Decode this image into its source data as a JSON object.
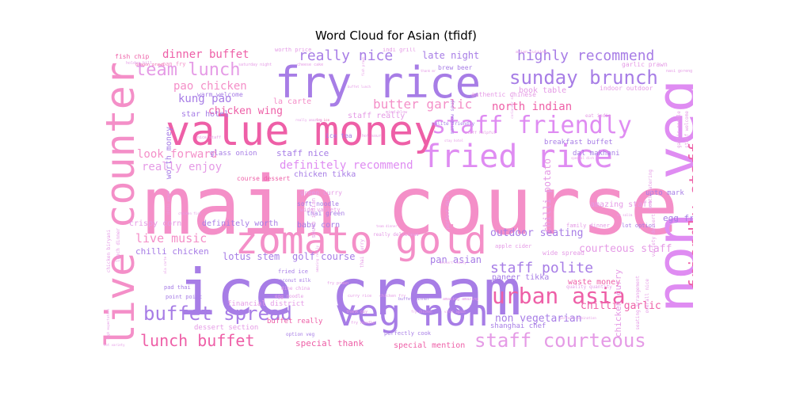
{
  "chart_data": {
    "type": "wordcloud",
    "title": "Word Cloud for Asian (tfidf)",
    "palette": [
      "#f48fc8",
      "#ee5fa7",
      "#a77de6",
      "#df8cf2",
      "#e59be6"
    ],
    "words": [
      {
        "text": "main course",
        "weight": 100,
        "color": "#f48fc8"
      },
      {
        "text": "ice cream",
        "weight": 78,
        "color": "#a77de6"
      },
      {
        "text": "non veg",
        "weight": 74,
        "color": "#df8cf2"
      },
      {
        "text": "value money",
        "weight": 58,
        "color": "#ee5fa7"
      },
      {
        "text": "fry rice",
        "weight": 58,
        "color": "#a77de6"
      },
      {
        "text": "live counter",
        "weight": 55,
        "color": "#f48fc8"
      },
      {
        "text": "zomato gold",
        "weight": 52,
        "color": "#f48fc8"
      },
      {
        "text": "veg non",
        "weight": 50,
        "color": "#a77de6"
      },
      {
        "text": "fried rice",
        "weight": 42,
        "color": "#df8cf2"
      },
      {
        "text": "staff friendly",
        "weight": 36,
        "color": "#df8cf2"
      },
      {
        "text": "urban asia",
        "weight": 30,
        "color": "#ee5fa7"
      },
      {
        "text": "sunday brunch",
        "weight": 28,
        "color": "#a77de6"
      },
      {
        "text": "buffet spread",
        "weight": 28,
        "color": "#a77de6"
      },
      {
        "text": "staff courteous",
        "weight": 28,
        "color": "#e59be6"
      },
      {
        "text": "friendly staff",
        "weight": 26,
        "color": "#ee5fa7"
      },
      {
        "text": "team lunch",
        "weight": 25,
        "color": "#e59be6"
      },
      {
        "text": "lunch buffet",
        "weight": 24,
        "color": "#ee5fa7"
      },
      {
        "text": "highly recommend",
        "weight": 22,
        "color": "#a77de6"
      },
      {
        "text": "really nice",
        "weight": 20,
        "color": "#a77de6"
      },
      {
        "text": "staff polite",
        "weight": 20,
        "color": "#a77de6"
      },
      {
        "text": "butter garlic",
        "weight": 18,
        "color": "#f48fc8"
      },
      {
        "text": "live music",
        "weight": 17,
        "color": "#f48fc8"
      },
      {
        "text": "dinner buffet",
        "weight": 16,
        "color": "#ee5fa7"
      },
      {
        "text": "pao chicken",
        "weight": 15,
        "color": "#f48fc8"
      },
      {
        "text": "kung pao",
        "weight": 15,
        "color": "#a77de6"
      },
      {
        "text": "chicken wing",
        "weight": 15,
        "color": "#ee5fa7"
      },
      {
        "text": "north indian",
        "weight": 15,
        "color": "#ee5fa7"
      },
      {
        "text": "definitely recommend",
        "weight": 15,
        "color": "#df8cf2"
      },
      {
        "text": "look forward",
        "weight": 15,
        "color": "#f48fc8"
      },
      {
        "text": "really enjoy",
        "weight": 15,
        "color": "#e59be6"
      },
      {
        "text": "outdoor seating",
        "weight": 15,
        "color": "#a77de6"
      },
      {
        "text": "courteous staff",
        "weight": 14,
        "color": "#e59be6"
      },
      {
        "text": "chilli garlic",
        "weight": 14,
        "color": "#ee5fa7"
      },
      {
        "text": "non vegetarian",
        "weight": 14,
        "color": "#a77de6"
      },
      {
        "text": "lotus stem",
        "weight": 13,
        "color": "#a77de6"
      },
      {
        "text": "golf course",
        "weight": 13,
        "color": "#a77de6"
      },
      {
        "text": "pan asian",
        "weight": 12,
        "color": "#a77de6"
      },
      {
        "text": "special thank",
        "weight": 11,
        "color": "#ee5fa7"
      },
      {
        "text": "special mention",
        "weight": 10,
        "color": "#ee5fa7"
      },
      {
        "text": "waste money",
        "weight": 10,
        "color": "#ee5fa7"
      },
      {
        "text": "paneer tikka",
        "weight": 10,
        "color": "#a77de6"
      },
      {
        "text": "chilli chicken",
        "weight": 10,
        "color": "#a77de6"
      },
      {
        "text": "late night",
        "weight": 10,
        "color": "#a77de6"
      },
      {
        "text": "staff nice",
        "weight": 10,
        "color": "#a77de6"
      },
      {
        "text": "la carte",
        "weight": 10,
        "color": "#f48fc8"
      },
      {
        "text": "book table",
        "weight": 9,
        "color": "#e59be6"
      },
      {
        "text": "star hotel",
        "weight": 9,
        "color": "#a77de6"
      },
      {
        "text": "chilli potato",
        "weight": 9,
        "color": "#e59be6"
      },
      {
        "text": "amazing staff",
        "weight": 9,
        "color": "#e59be6"
      },
      {
        "text": "egg fry",
        "weight": 9,
        "color": "#a77de6"
      },
      {
        "text": "chicken curry",
        "weight": 9,
        "color": "#e59be6"
      },
      {
        "text": "crispy corn",
        "weight": 9,
        "color": "#e59be6"
      },
      {
        "text": "baby corn",
        "weight": 9,
        "color": "#a77de6"
      },
      {
        "text": "definitely worth",
        "weight": 9,
        "color": "#a77de6"
      },
      {
        "text": "chicken tikka",
        "weight": 9,
        "color": "#a77de6"
      },
      {
        "text": "worth money",
        "weight": 9,
        "color": "#a77de6"
      },
      {
        "text": "staff really",
        "weight": 9,
        "color": "#e59be6"
      },
      {
        "text": "glass onion",
        "weight": 8,
        "color": "#a77de6"
      },
      {
        "text": "buffet really",
        "weight": 8,
        "color": "#ee5fa7"
      },
      {
        "text": "dessert section",
        "weight": 8,
        "color": "#e59be6"
      },
      {
        "text": "shanghai chef",
        "weight": 8,
        "color": "#a77de6"
      },
      {
        "text": "financial district",
        "weight": 8,
        "color": "#e59be6"
      },
      {
        "text": "upto mark",
        "weight": 8,
        "color": "#a77de6"
      },
      {
        "text": "breakfast buffet",
        "weight": 8,
        "color": "#a77de6"
      },
      {
        "text": "dal makhani",
        "weight": 8,
        "color": "#a77de6"
      },
      {
        "text": "indoor outdoor",
        "weight": 8,
        "color": "#e59be6"
      },
      {
        "text": "garlic prawn",
        "weight": 8,
        "color": "#e59be6"
      },
      {
        "text": "authentic chinese",
        "weight": 8,
        "color": "#e59be6"
      },
      {
        "text": "green curry",
        "weight": 8,
        "color": "#e59be6"
      },
      {
        "text": "soft noodle",
        "weight": 8,
        "color": "#a77de6"
      },
      {
        "text": "thai green",
        "weight": 8,
        "color": "#a77de6"
      },
      {
        "text": "south indian",
        "weight": 7,
        "color": "#e59be6"
      },
      {
        "text": "wide variety",
        "weight": 7,
        "color": "#e59be6"
      },
      {
        "text": "course dessert",
        "weight": 7,
        "color": "#ee5fa7"
      },
      {
        "text": "ice tea",
        "weight": 7,
        "color": "#a77de6"
      },
      {
        "text": "worth price",
        "weight": 7,
        "color": "#e59be6"
      },
      {
        "text": "fish chip",
        "weight": 7,
        "color": "#ee5fa7"
      },
      {
        "text": "pan fry",
        "weight": 7,
        "color": "#f48fc8"
      },
      {
        "text": "warm welcome",
        "weight": 7,
        "color": "#a77de6"
      },
      {
        "text": "brew beer",
        "weight": 7,
        "color": "#a77de6"
      },
      {
        "text": "indi grill",
        "weight": 7,
        "color": "#e59be6"
      },
      {
        "text": "wide spread",
        "weight": 7,
        "color": "#e59be6"
      },
      {
        "text": "apple cider",
        "weight": 7,
        "color": "#e59be6"
      },
      {
        "text": "family dinner",
        "weight": 7,
        "color": "#e59be6"
      },
      {
        "text": "lot option",
        "weight": 7,
        "color": "#a77de6"
      },
      {
        "text": "fried ice",
        "weight": 7,
        "color": "#a77de6"
      },
      {
        "text": "pad thai",
        "weight": 7,
        "color": "#a77de6"
      },
      {
        "text": "point point",
        "weight": 7,
        "color": "#a77de6"
      },
      {
        "text": "coconut milk",
        "weight": 6,
        "color": "#a77de6"
      },
      {
        "text": "dine china",
        "weight": 6,
        "color": "#e59be6"
      },
      {
        "text": "egg noodle",
        "weight": 6,
        "color": "#e59be6"
      },
      {
        "text": "option veg",
        "weight": 6,
        "color": "#a77de6"
      },
      {
        "text": "perfectly cook",
        "weight": 6,
        "color": "#a77de6"
      },
      {
        "text": "really delicious",
        "weight": 6,
        "color": "#e59be6"
      },
      {
        "text": "thai curry",
        "weight": 6,
        "color": "#e59be6"
      },
      {
        "text": "perfect date",
        "weight": 6,
        "color": "#e59be6"
      },
      {
        "text": "quality quantity",
        "weight": 6,
        "color": "#e59be6"
      },
      {
        "text": "seating arrangement",
        "weight": 6,
        "color": "#e59be6"
      },
      {
        "text": "mouth watering",
        "weight": 6,
        "color": "#e59be6"
      },
      {
        "text": "overall nice",
        "weight": 6,
        "color": "#e59be6"
      },
      {
        "text": "variety dessert",
        "weight": 6,
        "color": "#e59be6"
      },
      {
        "text": "garlic noodle",
        "weight": 6,
        "color": "#e59be6"
      },
      {
        "text": "staff welcome",
        "weight": 6,
        "color": "#e59be6"
      },
      {
        "text": "chicken biryani",
        "weight": 6,
        "color": "#e59be6"
      },
      {
        "text": "lunch dinner",
        "weight": 6,
        "color": "#e59be6"
      },
      {
        "text": "manchow soup",
        "weight": 6,
        "color": "#a77de6"
      },
      {
        "text": "polite friendly",
        "weight": 6,
        "color": "#a77de6"
      },
      {
        "text": "eat india",
        "weight": 6,
        "color": "#e59be6"
      },
      {
        "text": "staff helpful",
        "weight": 5,
        "color": "#e59be6"
      },
      {
        "text": "fry prawn",
        "weight": 5,
        "color": "#e59be6"
      },
      {
        "text": "curry rice",
        "weight": 5,
        "color": "#e59be6"
      },
      {
        "text": "chicken fry",
        "weight": 5,
        "color": "#e59be6"
      },
      {
        "text": "buffet dinner",
        "weight": 5,
        "color": "#a77de6"
      },
      {
        "text": "amazing amazing",
        "weight": 5,
        "color": "#e59be6"
      },
      {
        "text": "fry noodle",
        "weight": 5,
        "color": "#e59be6"
      },
      {
        "text": "thank guy",
        "weight": 5,
        "color": "#e59be6"
      },
      {
        "text": "hot sour",
        "weight": 5,
        "color": "#e59be6"
      },
      {
        "text": "nice staff",
        "weight": 5,
        "color": "#e59be6"
      },
      {
        "text": "mind blow",
        "weight": 5,
        "color": "#e59be6"
      },
      {
        "text": "cheese cake",
        "weight": 5,
        "color": "#e59be6"
      },
      {
        "text": "asian cuisine",
        "weight": 5,
        "color": "#e59be6"
      },
      {
        "text": "nasi goreng",
        "weight": 5,
        "color": "#e59be6"
      },
      {
        "text": "dragon prawn",
        "weight": 5,
        "color": "#ee5fa7"
      },
      {
        "text": "saturday night",
        "weight": 5,
        "color": "#e59be6"
      },
      {
        "text": "holder hill",
        "weight": 5,
        "color": "#e59be6"
      },
      {
        "text": "indoor seating",
        "weight": 5,
        "color": "#e59be6"
      },
      {
        "text": "hot variety",
        "weight": 4,
        "color": "#e59be6"
      },
      {
        "text": "team dinner",
        "weight": 4,
        "color": "#e59be6"
      },
      {
        "text": "fish prawn",
        "weight": 4,
        "color": "#e59be6"
      },
      {
        "text": "buffet lunch",
        "weight": 4,
        "color": "#e59be6"
      },
      {
        "text": "coriander soup",
        "weight": 4,
        "color": "#e59be6"
      },
      {
        "text": "fry ice",
        "weight": 4,
        "color": "#ee5fa7"
      },
      {
        "text": "stay hotel",
        "weight": 4,
        "color": "#e59be6"
      },
      {
        "text": "really amazing",
        "weight": 4,
        "color": "#e59be6"
      },
      {
        "text": "amazing really",
        "weight": 4,
        "color": "#e59be6"
      },
      {
        "text": "chilli paneer",
        "weight": 4,
        "color": "#e59be6"
      },
      {
        "text": "chicken fish",
        "weight": 4,
        "color": "#e59be6"
      },
      {
        "text": "mr salim",
        "weight": 4,
        "color": "#e59be6"
      },
      {
        "text": "fry chicken",
        "weight": 4,
        "color": "#e59be6"
      },
      {
        "text": "visit again",
        "weight": 4,
        "color": "#e59be6"
      },
      {
        "text": "dessert really",
        "weight": 4,
        "color": "#e59be6"
      },
      {
        "text": "special dish",
        "weight": 4,
        "color": "#e59be6"
      },
      {
        "text": "thank mr",
        "weight": 4,
        "color": "#e59be6"
      },
      {
        "text": "high expectation",
        "weight": 4,
        "color": "#e59be6"
      },
      {
        "text": "ala carte",
        "weight": 4,
        "color": "#e59be6"
      },
      {
        "text": "perfect combination",
        "weight": 4,
        "color": "#e59be6"
      }
    ]
  }
}
